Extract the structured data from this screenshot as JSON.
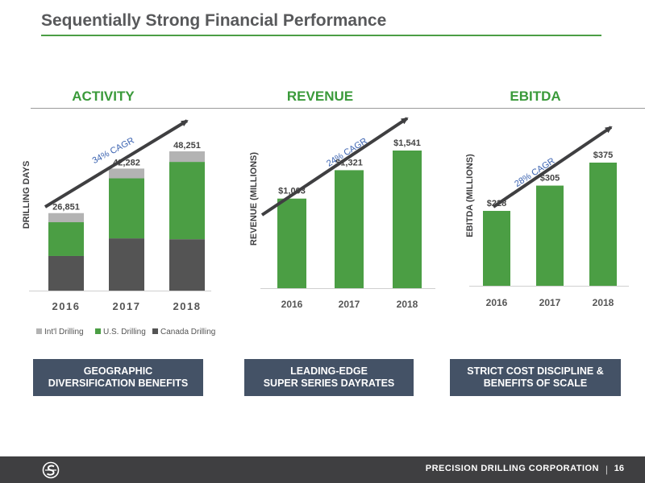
{
  "slide": {
    "title": "Sequentially Strong Financial Performance",
    "sections": [
      "ACTIVITY",
      "REVENUE",
      "EBITDA"
    ],
    "callouts": [
      [
        "GEOGRAPHIC",
        "DIVERSIFICATION BENEFITS"
      ],
      [
        "LEADING-EDGE",
        "SUPER SERIES DAYRATES"
      ],
      [
        "STRICT COST DISCIPLINE &",
        "BENEFITS OF SCALE"
      ]
    ],
    "footer": {
      "company": "PRECISION DRILLING CORPORATION",
      "separator": "|",
      "page": "16"
    },
    "colors": {
      "green": "#4b9e44",
      "dark": "#545454",
      "gray": "#b3b3b3",
      "callout_bg": "#445266",
      "accent_text": "#3a9a3a"
    }
  },
  "chart_data": [
    {
      "type": "bar",
      "stacked": true,
      "ylabel": "DRILLING DAYS",
      "categories": [
        "2016",
        "2017",
        "2018"
      ],
      "totals": [
        "26,851",
        "42,282",
        "48,251"
      ],
      "series": [
        {
          "name": "Canada Drilling",
          "color": "#545454",
          "values": [
            12000,
            18100,
            17800
          ]
        },
        {
          "name": "U.S. Drilling",
          "color": "#4b9e44",
          "values": [
            11700,
            20800,
            26800
          ]
        },
        {
          "name": "Int'l Drilling",
          "color": "#b3b3b3",
          "values": [
            3151,
            3382,
            3651
          ]
        }
      ],
      "ylim": [
        0,
        48251
      ],
      "annotation": "34% CAGR",
      "legend_position": "bottom"
    },
    {
      "type": "bar",
      "ylabel": "REVENUE (MILLIONS)",
      "categories": [
        "2016",
        "2017",
        "2018"
      ],
      "values": [
        1003,
        1321,
        1541
      ],
      "labels": [
        "$1,003",
        "$1,321",
        "$1,541"
      ],
      "ylim": [
        0,
        1541
      ],
      "annotation": "24% CAGR"
    },
    {
      "type": "bar",
      "ylabel": "EBITDA (MILLIONS)",
      "categories": [
        "2016",
        "2017",
        "2018"
      ],
      "values": [
        228,
        305,
        375
      ],
      "labels": [
        "$228",
        "$305",
        "$375"
      ],
      "ylim": [
        0,
        375
      ],
      "annotation": "28% CAGR"
    }
  ]
}
